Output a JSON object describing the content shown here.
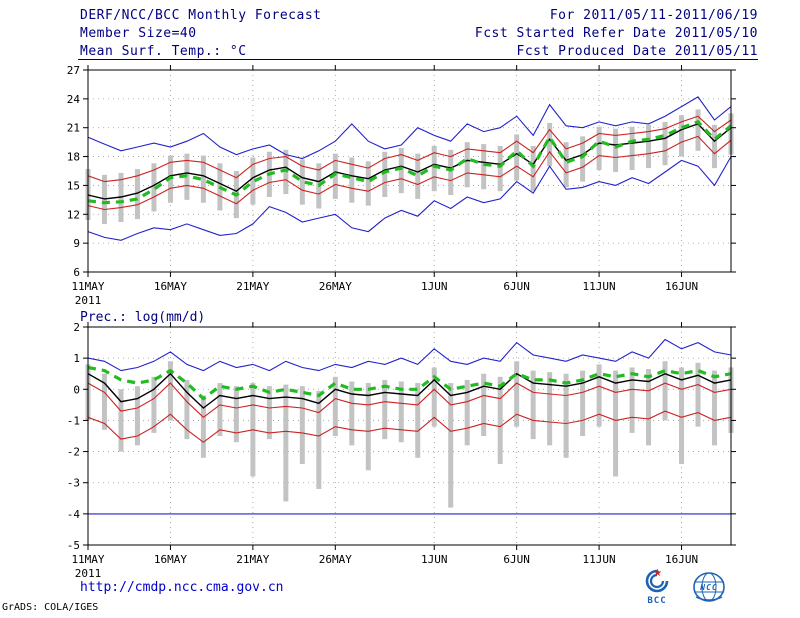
{
  "header": {
    "title": "DERF/NCC/BCC Monthly Forecast",
    "member_size": "Member Size=40",
    "variable_label": "Mean Surf. Temp.: °C",
    "for_range": "For 2011/05/11-2011/06/19",
    "fcst_started": "Fcst Started Refer Date 2011/05/10",
    "fcst_produced": "Fcst Produced Date 2011/05/11"
  },
  "panel2_label": "Prec.: log(mm/d)",
  "footer": {
    "url": "http://cmdp.ncc.cma.gov.cn",
    "credit": "GrADS: COLA/IGES",
    "logo_bcc": "BCC",
    "logo_ncc": "NCC"
  },
  "chart_data": [
    {
      "type": "line",
      "title": "Mean Surf. Temp.: °C",
      "ylabel": "°C",
      "ylim": [
        6,
        27
      ],
      "yticks": [
        6,
        9,
        12,
        15,
        18,
        21,
        24,
        27
      ],
      "n_points": 40,
      "x_start": "11MAY2011",
      "x_end": "19JUN2011",
      "xtick_labels": [
        "11MAY",
        "16MAY",
        "21MAY",
        "26MAY",
        "1JUN",
        "6JUN",
        "11JUN",
        "16JUN"
      ],
      "xtick_index": [
        0,
        5,
        10,
        15,
        21,
        26,
        31,
        36
      ],
      "year_label": "2011",
      "grid": true,
      "legend_position": "none",
      "series": [
        {
          "name": "ensemble-max",
          "color": "#2222cc",
          "style": "solid",
          "values": [
            20.0,
            19.3,
            18.6,
            19.0,
            19.4,
            19.0,
            19.6,
            20.4,
            19.0,
            18.2,
            18.8,
            19.2,
            18.2,
            17.8,
            18.6,
            19.6,
            21.4,
            19.6,
            18.8,
            19.2,
            21.0,
            20.2,
            19.6,
            21.4,
            20.6,
            21.0,
            22.2,
            20.2,
            23.4,
            21.2,
            21.0,
            21.6,
            21.2,
            21.6,
            21.4,
            22.2,
            23.2,
            24.2,
            21.8,
            23.2
          ]
        },
        {
          "name": "ensemble-min",
          "color": "#2222cc",
          "style": "solid",
          "values": [
            10.2,
            9.6,
            9.3,
            10.0,
            10.6,
            10.4,
            11.0,
            10.4,
            9.8,
            10.0,
            11.0,
            12.8,
            12.2,
            11.2,
            11.6,
            12.0,
            10.6,
            10.2,
            11.6,
            12.4,
            11.8,
            13.4,
            12.6,
            13.8,
            13.2,
            13.6,
            15.4,
            14.2,
            17.0,
            14.6,
            14.8,
            15.4,
            15.0,
            15.8,
            15.2,
            16.4,
            17.6,
            17.0,
            15.0,
            18.0
          ]
        },
        {
          "name": "spread-upper",
          "color": "#cc2222",
          "style": "solid",
          "values": [
            16.0,
            15.4,
            15.6,
            16.0,
            16.6,
            17.4,
            17.6,
            17.4,
            16.6,
            15.8,
            17.2,
            17.8,
            18.0,
            17.0,
            16.6,
            17.6,
            17.2,
            16.8,
            17.8,
            18.2,
            17.6,
            18.4,
            18.0,
            18.8,
            18.6,
            18.4,
            19.6,
            18.4,
            20.8,
            18.8,
            19.4,
            20.4,
            20.2,
            20.4,
            20.6,
            20.9,
            21.6,
            22.2,
            20.6,
            21.8
          ]
        },
        {
          "name": "spread-lower",
          "color": "#cc2222",
          "style": "solid",
          "values": [
            12.9,
            12.5,
            12.7,
            13.0,
            13.8,
            14.7,
            15.0,
            14.7,
            13.9,
            13.1,
            14.5,
            15.3,
            15.6,
            14.5,
            14.1,
            15.1,
            14.7,
            14.4,
            15.3,
            15.7,
            15.1,
            15.9,
            15.5,
            16.3,
            16.1,
            15.9,
            17.0,
            15.9,
            18.5,
            16.3,
            16.9,
            18.1,
            17.9,
            18.1,
            18.3,
            18.6,
            19.5,
            20.1,
            18.3,
            19.7
          ]
        },
        {
          "name": "ensemble-mean",
          "color": "#000000",
          "style": "solid",
          "values": [
            14.0,
            13.6,
            13.8,
            14.2,
            15.0,
            16.0,
            16.3,
            16.0,
            15.2,
            14.4,
            15.8,
            16.6,
            16.9,
            15.8,
            15.4,
            16.4,
            16.0,
            15.7,
            16.6,
            17.0,
            16.4,
            17.2,
            16.8,
            17.6,
            17.4,
            17.2,
            18.3,
            17.2,
            19.8,
            17.6,
            18.2,
            19.4,
            19.2,
            19.4,
            19.6,
            19.9,
            20.8,
            21.4,
            19.6,
            21.0
          ]
        },
        {
          "name": "climatology",
          "color": "#22bb22",
          "style": "dashed-thick",
          "values": [
            13.4,
            13.2,
            13.3,
            13.6,
            14.6,
            15.8,
            16.0,
            15.6,
            14.8,
            14.0,
            15.4,
            16.2,
            16.6,
            15.4,
            15.0,
            16.2,
            15.8,
            15.4,
            16.4,
            16.8,
            16.0,
            17.0,
            16.6,
            17.8,
            17.2,
            17.0,
            18.6,
            17.0,
            20.0,
            17.4,
            18.0,
            19.6,
            19.0,
            19.6,
            19.8,
            20.2,
            21.0,
            21.6,
            19.8,
            21.2
          ]
        }
      ],
      "bars": {
        "name": "member-spread-bar",
        "color": "#c3c3c3",
        "high": [
          16.7,
          16.1,
          16.3,
          16.7,
          17.3,
          18.1,
          18.3,
          18.1,
          17.3,
          16.5,
          17.9,
          18.5,
          18.7,
          17.7,
          17.3,
          18.3,
          17.9,
          17.5,
          18.5,
          18.9,
          18.3,
          19.1,
          18.7,
          19.5,
          19.3,
          19.1,
          20.3,
          19.1,
          21.5,
          19.5,
          20.1,
          21.1,
          20.9,
          21.1,
          21.3,
          21.6,
          22.3,
          22.9,
          21.3,
          22.5
        ],
        "low": [
          11.4,
          11.0,
          11.2,
          11.5,
          12.3,
          13.2,
          13.5,
          13.2,
          12.4,
          11.6,
          13.0,
          13.8,
          14.1,
          13.0,
          12.6,
          13.6,
          13.2,
          12.9,
          13.8,
          14.2,
          13.6,
          14.4,
          14.0,
          14.8,
          14.6,
          14.4,
          15.5,
          14.4,
          17.0,
          14.8,
          15.4,
          16.6,
          16.4,
          16.6,
          16.8,
          17.1,
          18.0,
          18.6,
          16.8,
          18.2
        ]
      }
    },
    {
      "type": "line",
      "title": "Prec.: log(mm/d)",
      "ylabel": "log(mm/d)",
      "ylim": [
        -5,
        2
      ],
      "yticks": [
        -5,
        -4,
        -3,
        -2,
        -1,
        0,
        1,
        2
      ],
      "n_points": 40,
      "x_start": "11MAY2011",
      "x_end": "19JUN2011",
      "xtick_labels": [
        "11MAY",
        "16MAY",
        "21MAY",
        "26MAY",
        "1JUN",
        "6JUN",
        "11JUN",
        "16JUN"
      ],
      "xtick_index": [
        0,
        5,
        10,
        15,
        21,
        26,
        31,
        36
      ],
      "year_label": "2011",
      "grid": true,
      "legend_position": "none",
      "series": [
        {
          "name": "ensemble-max",
          "color": "#2222cc",
          "style": "solid",
          "values": [
            1.0,
            0.9,
            0.6,
            0.7,
            0.9,
            1.2,
            0.8,
            0.6,
            0.9,
            0.7,
            0.8,
            0.6,
            0.9,
            0.7,
            0.6,
            0.8,
            0.7,
            0.9,
            0.8,
            1.0,
            0.8,
            1.3,
            0.9,
            0.8,
            1.0,
            0.9,
            1.5,
            1.1,
            1.0,
            0.9,
            1.1,
            1.0,
            0.9,
            1.2,
            1.0,
            1.6,
            1.3,
            1.5,
            1.2,
            1.1
          ]
        },
        {
          "name": "ensemble-min",
          "color": "#2222cc",
          "style": "solid",
          "values": [
            -4,
            -4,
            -4,
            -4,
            -4,
            -4,
            -4,
            -4,
            -4,
            -4,
            -4,
            -4,
            -4,
            -4,
            -4,
            -4,
            -4,
            -4,
            -4,
            -4,
            -4,
            -4,
            -4,
            -4,
            -4,
            -4,
            -4,
            -4,
            -4,
            -4,
            -4,
            -4,
            -4,
            -4,
            -4,
            -4,
            -4,
            -4,
            -4,
            -4
          ]
        },
        {
          "name": "spread-upper",
          "color": "#cc2222",
          "style": "solid",
          "values": [
            0.2,
            -0.1,
            -0.7,
            -0.6,
            -0.3,
            0.2,
            -0.4,
            -0.9,
            -0.5,
            -0.6,
            -0.5,
            -0.6,
            -0.55,
            -0.6,
            -0.75,
            -0.3,
            -0.45,
            -0.5,
            -0.4,
            -0.45,
            -0.5,
            0.0,
            -0.5,
            -0.4,
            -0.2,
            -0.3,
            0.2,
            -0.1,
            -0.15,
            -0.2,
            -0.1,
            0.1,
            -0.1,
            0.0,
            -0.05,
            0.2,
            0.0,
            0.15,
            -0.1,
            0.0
          ]
        },
        {
          "name": "spread-lower",
          "color": "#cc2222",
          "style": "solid",
          "values": [
            -0.9,
            -1.1,
            -1.6,
            -1.5,
            -1.2,
            -0.8,
            -1.3,
            -1.7,
            -1.3,
            -1.4,
            -1.3,
            -1.4,
            -1.35,
            -1.4,
            -1.5,
            -1.2,
            -1.3,
            -1.35,
            -1.25,
            -1.3,
            -1.35,
            -0.9,
            -1.35,
            -1.25,
            -1.1,
            -1.2,
            -0.8,
            -1.0,
            -1.05,
            -1.1,
            -1.0,
            -0.8,
            -1.0,
            -0.9,
            -0.95,
            -0.7,
            -0.9,
            -0.75,
            -1.0,
            -0.9
          ]
        },
        {
          "name": "ensemble-mean",
          "color": "#000000",
          "style": "solid",
          "values": [
            0.5,
            0.2,
            -0.4,
            -0.3,
            0.0,
            0.5,
            -0.1,
            -0.6,
            -0.2,
            -0.3,
            -0.2,
            -0.3,
            -0.25,
            -0.3,
            -0.45,
            0.0,
            -0.15,
            -0.2,
            -0.1,
            -0.15,
            -0.2,
            0.3,
            -0.2,
            -0.1,
            0.1,
            0.0,
            0.5,
            0.2,
            0.15,
            0.1,
            0.2,
            0.4,
            0.2,
            0.3,
            0.25,
            0.5,
            0.3,
            0.45,
            0.2,
            0.3
          ]
        },
        {
          "name": "climatology",
          "color": "#22bb22",
          "style": "dashed-thick",
          "values": [
            0.7,
            0.6,
            0.3,
            0.2,
            0.3,
            0.6,
            0.2,
            -0.3,
            0.1,
            0.0,
            0.1,
            -0.1,
            0.0,
            -0.1,
            -0.2,
            0.2,
            0.0,
            0.0,
            0.1,
            0.0,
            0.0,
            0.4,
            0.0,
            0.1,
            0.2,
            0.1,
            0.5,
            0.3,
            0.3,
            0.2,
            0.3,
            0.5,
            0.4,
            0.5,
            0.4,
            0.6,
            0.5,
            0.6,
            0.4,
            0.5
          ]
        }
      ],
      "bars": {
        "name": "member-spread-bar",
        "color": "#c3c3c3",
        "high": [
          0.8,
          0.5,
          0.0,
          0.1,
          0.4,
          0.9,
          0.3,
          -0.2,
          0.2,
          0.1,
          0.2,
          0.1,
          0.15,
          0.1,
          -0.05,
          0.4,
          0.25,
          0.2,
          0.3,
          0.25,
          0.2,
          0.7,
          0.2,
          0.3,
          0.5,
          0.4,
          0.9,
          0.6,
          0.55,
          0.5,
          0.6,
          0.8,
          0.6,
          0.7,
          0.65,
          0.9,
          0.7,
          0.85,
          0.6,
          0.7
        ],
        "low": [
          -1.0,
          -1.3,
          -2.0,
          -1.8,
          -1.4,
          -1.0,
          -1.6,
          -2.2,
          -1.5,
          -1.7,
          -2.8,
          -1.6,
          -3.6,
          -2.4,
          -3.2,
          -1.5,
          -1.8,
          -2.6,
          -1.6,
          -1.7,
          -2.2,
          -1.2,
          -3.8,
          -1.8,
          -1.5,
          -2.4,
          -1.2,
          -1.6,
          -1.8,
          -2.2,
          -1.5,
          -1.2,
          -2.8,
          -1.4,
          -1.8,
          -1.0,
          -2.4,
          -1.2,
          -1.8,
          -1.4
        ]
      }
    }
  ]
}
